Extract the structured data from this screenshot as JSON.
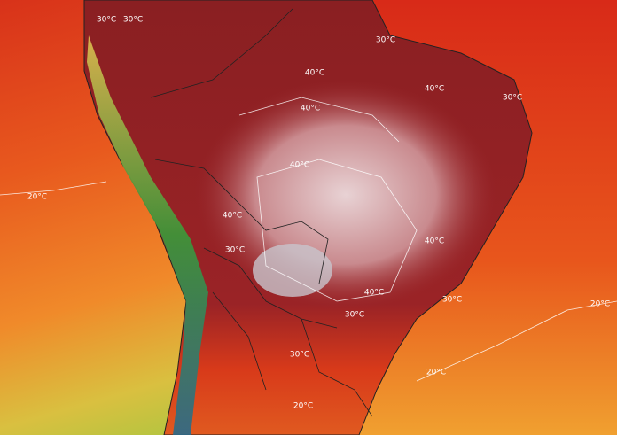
{
  "map": {
    "contour_labels": [
      "30°C",
      "30°C",
      "30°C",
      "30°C",
      "40°C",
      "40°C",
      "40°C",
      "40°C",
      "40°C",
      "40°C",
      "40°C",
      "30°C",
      "20°C",
      "20°C",
      "20°C",
      "30°C",
      "30°C",
      "30°C",
      "20°C"
    ]
  }
}
